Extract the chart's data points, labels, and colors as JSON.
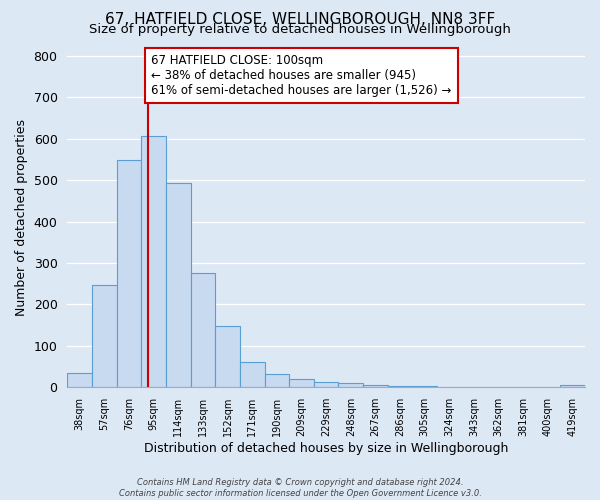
{
  "title": "67, HATFIELD CLOSE, WELLINGBOROUGH, NN8 3FF",
  "subtitle": "Size of property relative to detached houses in Wellingborough",
  "xlabel": "Distribution of detached houses by size in Wellingborough",
  "ylabel": "Number of detached properties",
  "bin_labels": [
    "38sqm",
    "57sqm",
    "76sqm",
    "95sqm",
    "114sqm",
    "133sqm",
    "152sqm",
    "171sqm",
    "190sqm",
    "209sqm",
    "229sqm",
    "248sqm",
    "267sqm",
    "286sqm",
    "305sqm",
    "324sqm",
    "343sqm",
    "362sqm",
    "381sqm",
    "400sqm",
    "419sqm"
  ],
  "bar_heights": [
    35,
    248,
    548,
    607,
    493,
    277,
    148,
    62,
    33,
    20,
    13,
    10,
    5,
    4,
    3,
    2,
    1,
    1,
    0,
    0,
    5
  ],
  "bar_color": "#c8daf0",
  "bar_edge_color": "#5a9fd4",
  "vline_x": 3.26,
  "vline_color": "#cc0000",
  "annotation_text": "67 HATFIELD CLOSE: 100sqm\n← 38% of detached houses are smaller (945)\n61% of semi-detached houses are larger (1,526) →",
  "annotation_box_facecolor": "#ffffff",
  "annotation_box_edgecolor": "#cc0000",
  "ylim": [
    0,
    820
  ],
  "yticks": [
    0,
    100,
    200,
    300,
    400,
    500,
    600,
    700,
    800
  ],
  "background_color": "#dde8f5",
  "plot_bg_color": "#dde8f5",
  "footer_line1": "Contains HM Land Registry data © Crown copyright and database right 2024.",
  "footer_line2": "Contains public sector information licensed under the Open Government Licence v3.0.",
  "title_fontsize": 11,
  "subtitle_fontsize": 9.5,
  "xlabel_fontsize": 9,
  "ylabel_fontsize": 9,
  "annotation_fontsize": 8.5
}
